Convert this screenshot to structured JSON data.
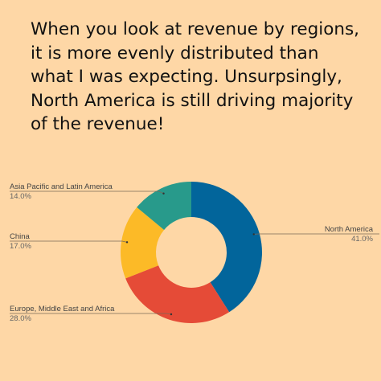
{
  "headline": "When you look at revenue by regions, it is more evenly distributed than what I was expecting. Unsurpsingly, North America is still driving majority of the revenue!",
  "chart_data": {
    "type": "pie",
    "variant": "donut",
    "title": "",
    "legend": "none",
    "slices": [
      {
        "label": "North America",
        "value": 41.0,
        "display": "41.0%",
        "color": "#02659b"
      },
      {
        "label": "Europe, Middle East and Africa",
        "value": 28.0,
        "display": "28.0%",
        "color": "#e54b37"
      },
      {
        "label": "China",
        "value": 17.0,
        "display": "17.0%",
        "color": "#fcba27"
      },
      {
        "label": "Asia Pacific and Latin America",
        "value": 14.0,
        "display": "14.0%",
        "color": "#289a8b"
      }
    ]
  }
}
